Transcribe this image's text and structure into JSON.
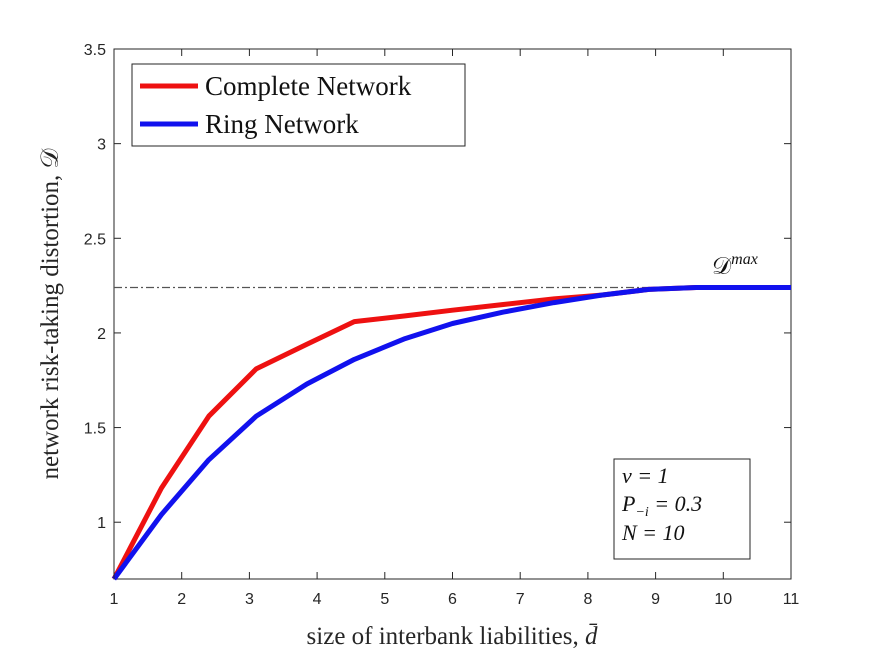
{
  "chart_data": {
    "type": "line",
    "xlabel": "size of interbank liabilities,",
    "xlabel_symbol": "d̄",
    "ylabel": "network risk-taking distortion,",
    "ylabel_symbol": "𝒟",
    "xlim": [
      1,
      11
    ],
    "ylim": [
      0.7,
      3.5
    ],
    "xticks": [
      "1",
      "2",
      "3",
      "4",
      "5",
      "6",
      "7",
      "8",
      "9",
      "10",
      "11"
    ],
    "yticks": [
      "1",
      "1.5",
      "2",
      "2.5",
      "3",
      "3.5"
    ],
    "grid": false,
    "legend_position": "top-left",
    "series": [
      {
        "name": "Complete Network",
        "color": "#ee1111",
        "x": [
          1,
          1.7,
          2.4,
          3.1,
          3.85,
          4.55,
          5.3,
          6.0,
          6.75,
          7.5,
          8.2,
          8.9,
          9.6,
          10.3,
          11
        ],
        "y": [
          0.7,
          1.18,
          1.56,
          1.81,
          1.94,
          2.06,
          2.09,
          2.12,
          2.15,
          2.18,
          2.2,
          2.23,
          2.24,
          2.24,
          2.24
        ]
      },
      {
        "name": "Ring Network",
        "color": "#1111ee",
        "x": [
          1,
          1.7,
          2.4,
          3.1,
          3.85,
          4.55,
          5.3,
          6.0,
          6.75,
          7.5,
          8.2,
          8.9,
          9.6,
          10.3,
          11
        ],
        "y": [
          0.7,
          1.04,
          1.33,
          1.56,
          1.73,
          1.86,
          1.97,
          2.05,
          2.11,
          2.16,
          2.2,
          2.23,
          2.24,
          2.24,
          2.24
        ]
      }
    ],
    "reference_line": {
      "y": 2.24,
      "style": "dash-dot",
      "color": "#555555",
      "label": "𝒟",
      "label_superscript": "max"
    },
    "annotation_lines": [
      "v = 1",
      "P",
      "−i",
      " = 0.3",
      "N = 10"
    ]
  }
}
